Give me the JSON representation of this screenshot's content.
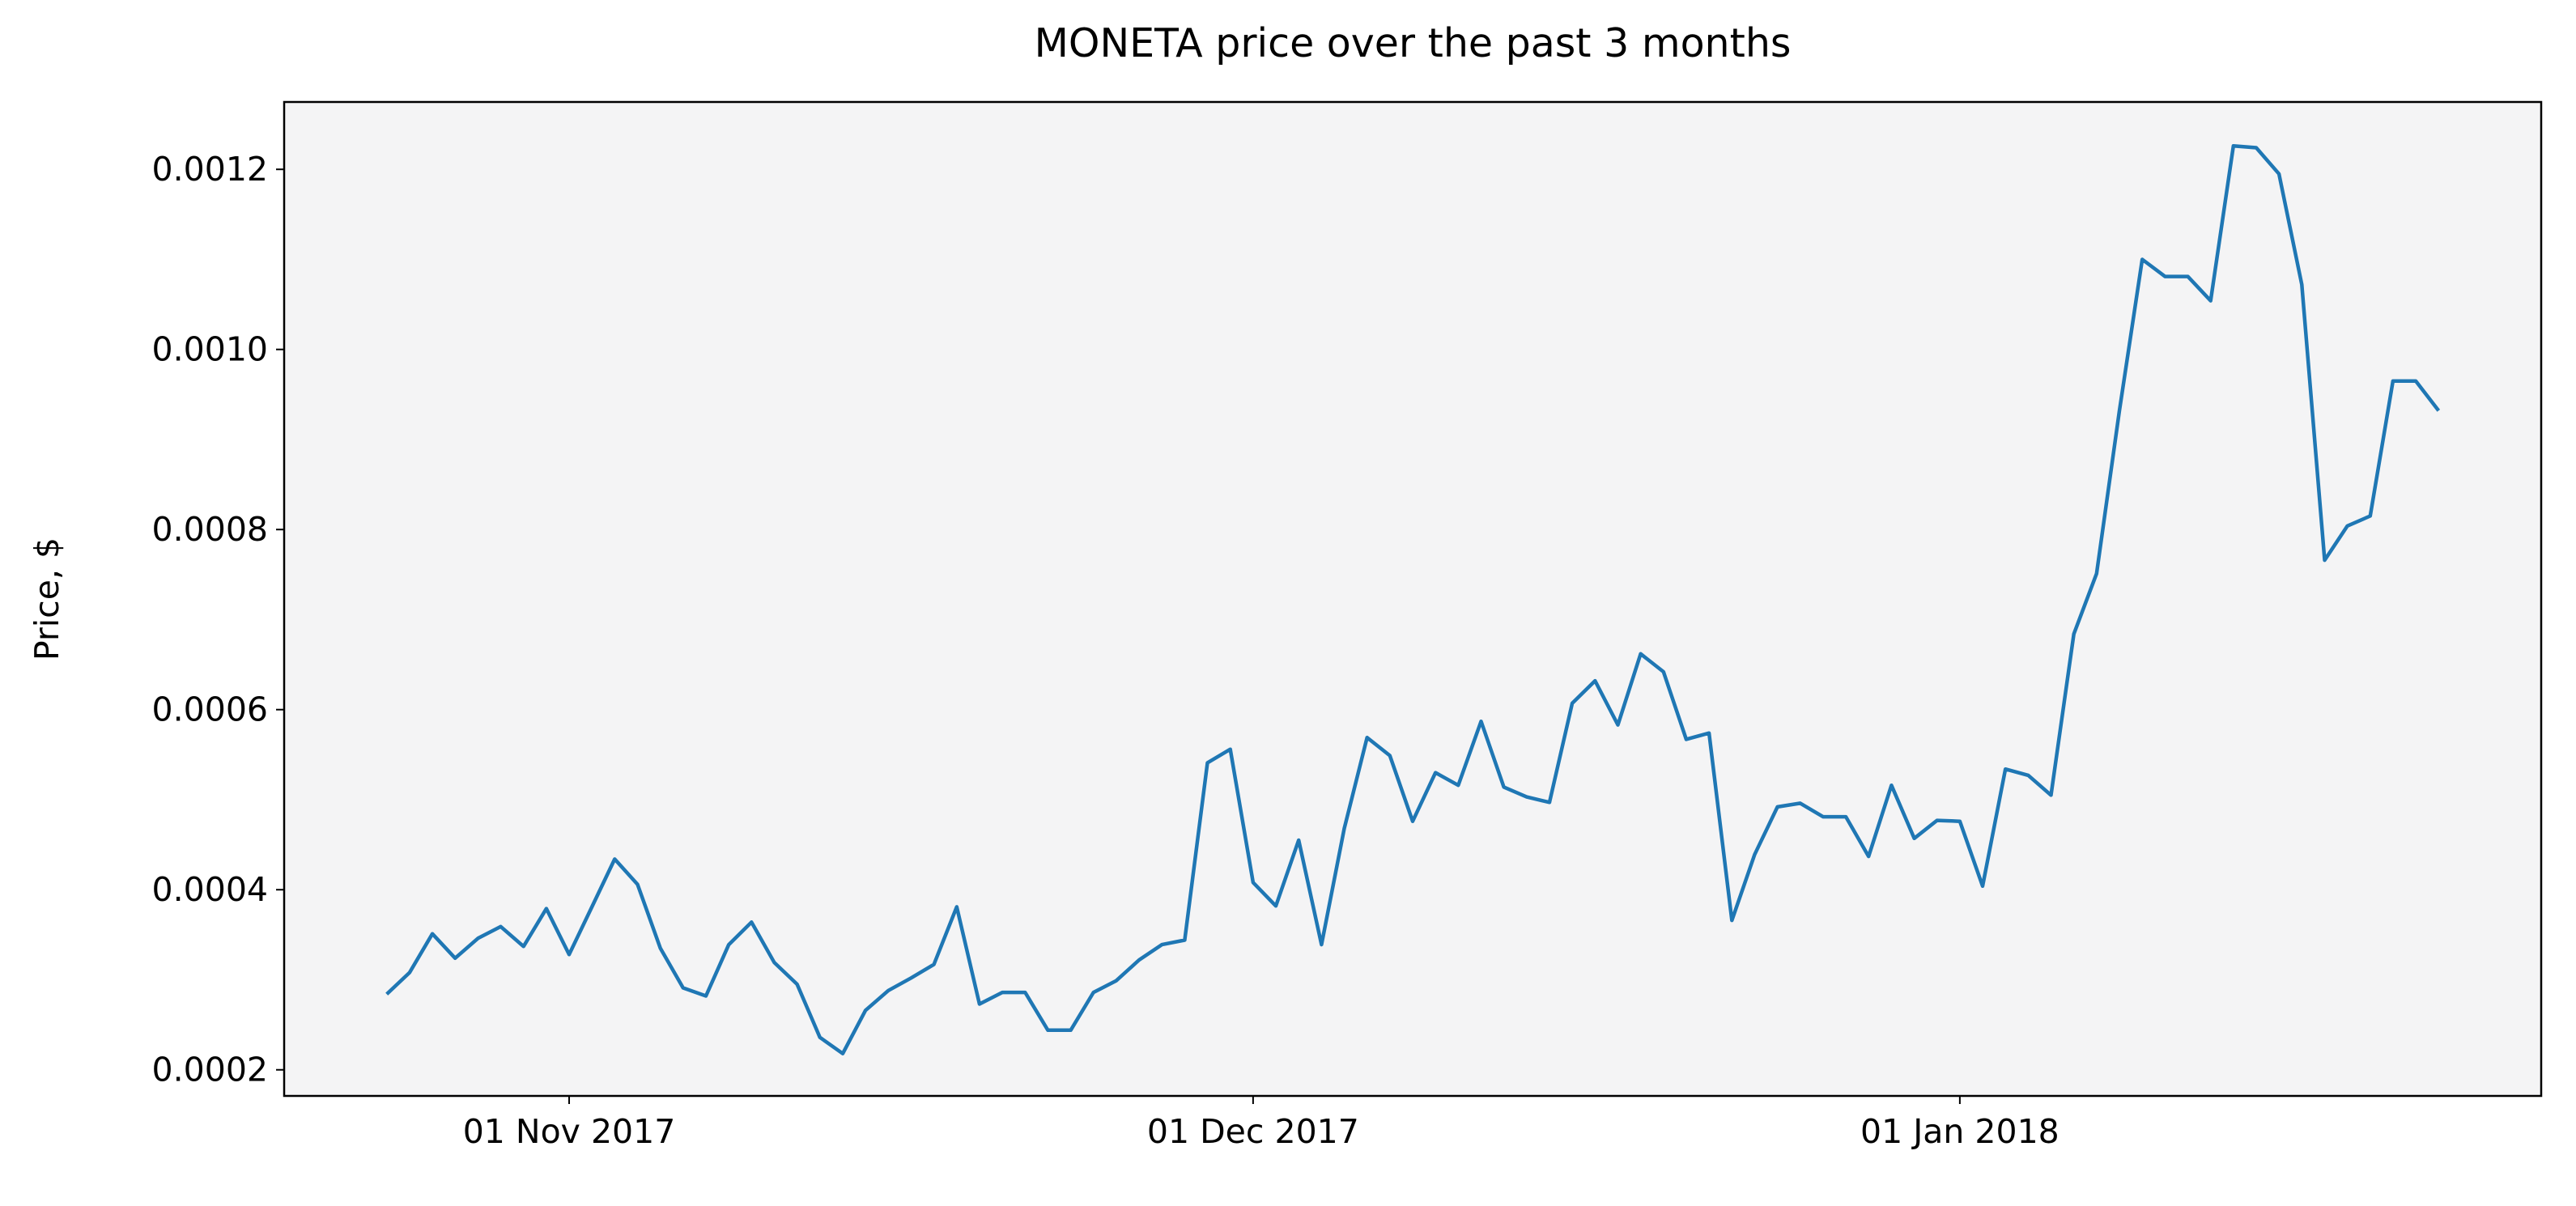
{
  "chart_data": {
    "type": "line",
    "title": "MONETA price over the past 3 months",
    "ylabel": "Price, $",
    "x": [
      "2017-10-24",
      "2017-10-25",
      "2017-10-26",
      "2017-10-27",
      "2017-10-28",
      "2017-10-29",
      "2017-10-30",
      "2017-10-31",
      "2017-11-01",
      "2017-11-02",
      "2017-11-03",
      "2017-11-04",
      "2017-11-05",
      "2017-11-06",
      "2017-11-07",
      "2017-11-08",
      "2017-11-09",
      "2017-11-10",
      "2017-11-11",
      "2017-11-12",
      "2017-11-13",
      "2017-11-14",
      "2017-11-15",
      "2017-11-16",
      "2017-11-17",
      "2017-11-18",
      "2017-11-19",
      "2017-11-20",
      "2017-11-21",
      "2017-11-22",
      "2017-11-23",
      "2017-11-24",
      "2017-11-25",
      "2017-11-26",
      "2017-11-27",
      "2017-11-28",
      "2017-11-29",
      "2017-11-30",
      "2017-12-01",
      "2017-12-02",
      "2017-12-03",
      "2017-12-04",
      "2017-12-05",
      "2017-12-06",
      "2017-12-07",
      "2017-12-08",
      "2017-12-09",
      "2017-12-10",
      "2017-12-11",
      "2017-12-12",
      "2017-12-13",
      "2017-12-14",
      "2017-12-15",
      "2017-12-16",
      "2017-12-17",
      "2017-12-18",
      "2017-12-19",
      "2017-12-20",
      "2017-12-21",
      "2017-12-22",
      "2017-12-23",
      "2017-12-24",
      "2017-12-25",
      "2017-12-26",
      "2017-12-27",
      "2017-12-28",
      "2017-12-29",
      "2017-12-30",
      "2017-12-31",
      "2018-01-01",
      "2018-01-02",
      "2018-01-03",
      "2018-01-04",
      "2018-01-05",
      "2018-01-06",
      "2018-01-07",
      "2018-01-08",
      "2018-01-09",
      "2018-01-10",
      "2018-01-11",
      "2018-01-12",
      "2018-01-13",
      "2018-01-14",
      "2018-01-15",
      "2018-01-16",
      "2018-01-17",
      "2018-01-18",
      "2018-01-19",
      "2018-01-20",
      "2018-01-21",
      "2018-01-22"
    ],
    "series": [
      {
        "name": "MONETA",
        "color": "#1f77b4",
        "values": [
          0.000284,
          0.000308,
          0.000351,
          0.000324,
          0.000346,
          0.000359,
          0.000337,
          0.000379,
          0.000328,
          0.000381,
          0.000434,
          0.000406,
          0.000335,
          0.000291,
          0.000282,
          0.000339,
          0.000364,
          0.000319,
          0.000295,
          0.000236,
          0.000218,
          0.000266,
          0.000288,
          0.000302,
          0.000317,
          0.000381,
          0.000273,
          0.000286,
          0.000286,
          0.000244,
          0.000244,
          0.000286,
          0.000299,
          0.000322,
          0.000339,
          0.000344,
          0.000541,
          0.000556,
          0.000408,
          0.000382,
          0.000455,
          0.000339,
          0.000468,
          0.000569,
          0.000549,
          0.000476,
          0.00053,
          0.000516,
          0.000587,
          0.000514,
          0.000503,
          0.000497,
          0.000607,
          0.000632,
          0.000583,
          0.000662,
          0.000642,
          0.000567,
          0.000574,
          0.000366,
          0.000439,
          0.000492,
          0.000496,
          0.000481,
          0.000481,
          0.000437,
          0.000516,
          0.000457,
          0.000477,
          0.000476,
          0.000404,
          0.000534,
          0.000527,
          0.000505,
          0.000684,
          0.000751,
          0.000932,
          0.0011,
          0.001081,
          0.001081,
          0.001054,
          0.001226,
          0.001224,
          0.001195,
          0.001072,
          0.000766,
          0.000804,
          0.000815,
          0.000965,
          0.000965,
          0.000932
        ]
      }
    ],
    "xlim": [
      "2017-10-19T12:00",
      "2018-01-26T12:00"
    ],
    "xticks": [
      {
        "value": "2017-11-01",
        "label": "01 Nov 2017"
      },
      {
        "value": "2017-12-01",
        "label": "01 Dec 2017"
      },
      {
        "value": "2018-01-01",
        "label": "01 Jan 2018"
      }
    ],
    "ylim": [
      0.000171,
      0.0012748
    ],
    "yticks": [
      0.0002,
      0.0004,
      0.0006,
      0.0008,
      {
        "value": 0.001,
        "label": "0.0010"
      },
      0.0012
    ],
    "background": "#f4f4f5"
  }
}
